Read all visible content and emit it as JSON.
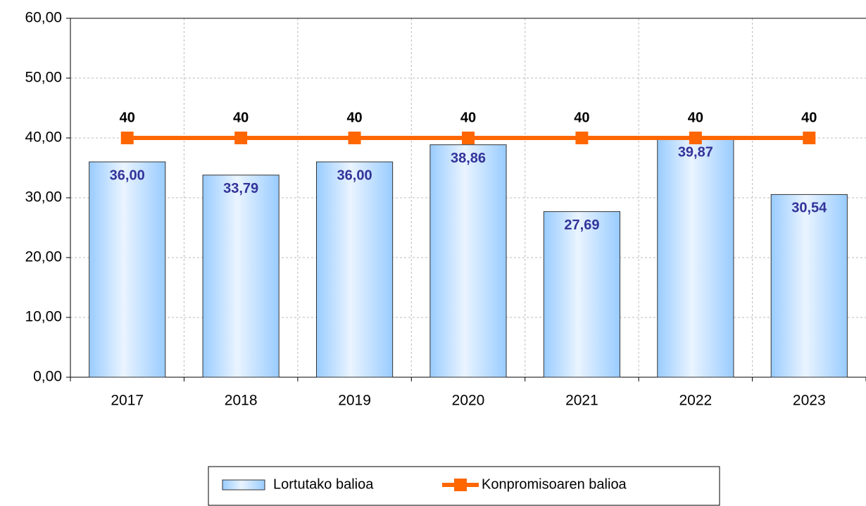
{
  "chart_data": {
    "type": "bar",
    "categories": [
      "2017",
      "2018",
      "2019",
      "2020",
      "2021",
      "2022",
      "2023"
    ],
    "series": [
      {
        "name": "Lortutako balioa",
        "type": "bar",
        "color": "#99ccff",
        "values": [
          36.0,
          33.79,
          36.0,
          38.86,
          27.69,
          39.87,
          30.54
        ],
        "value_labels": [
          "36,00",
          "33,79",
          "36,00",
          "38,86",
          "27,69",
          "39,87",
          "30,54"
        ]
      },
      {
        "name": "Konpromisoaren balioa",
        "type": "line",
        "color": "#ff6600",
        "values": [
          40,
          40,
          40,
          40,
          40,
          40,
          40
        ]
      }
    ],
    "ylim": [
      0,
      60
    ],
    "yticks": [
      {
        "value": 0,
        "label": "0,00"
      },
      {
        "value": 10,
        "label": "10,00"
      },
      {
        "value": 20,
        "label": "20,00"
      },
      {
        "value": 30,
        "label": "30,00"
      },
      {
        "value": 40,
        "label": "40,00"
      },
      {
        "value": 50,
        "label": "50,00"
      },
      {
        "value": 60,
        "label": "60,00"
      }
    ],
    "grid": true,
    "legend": "bottom"
  }
}
